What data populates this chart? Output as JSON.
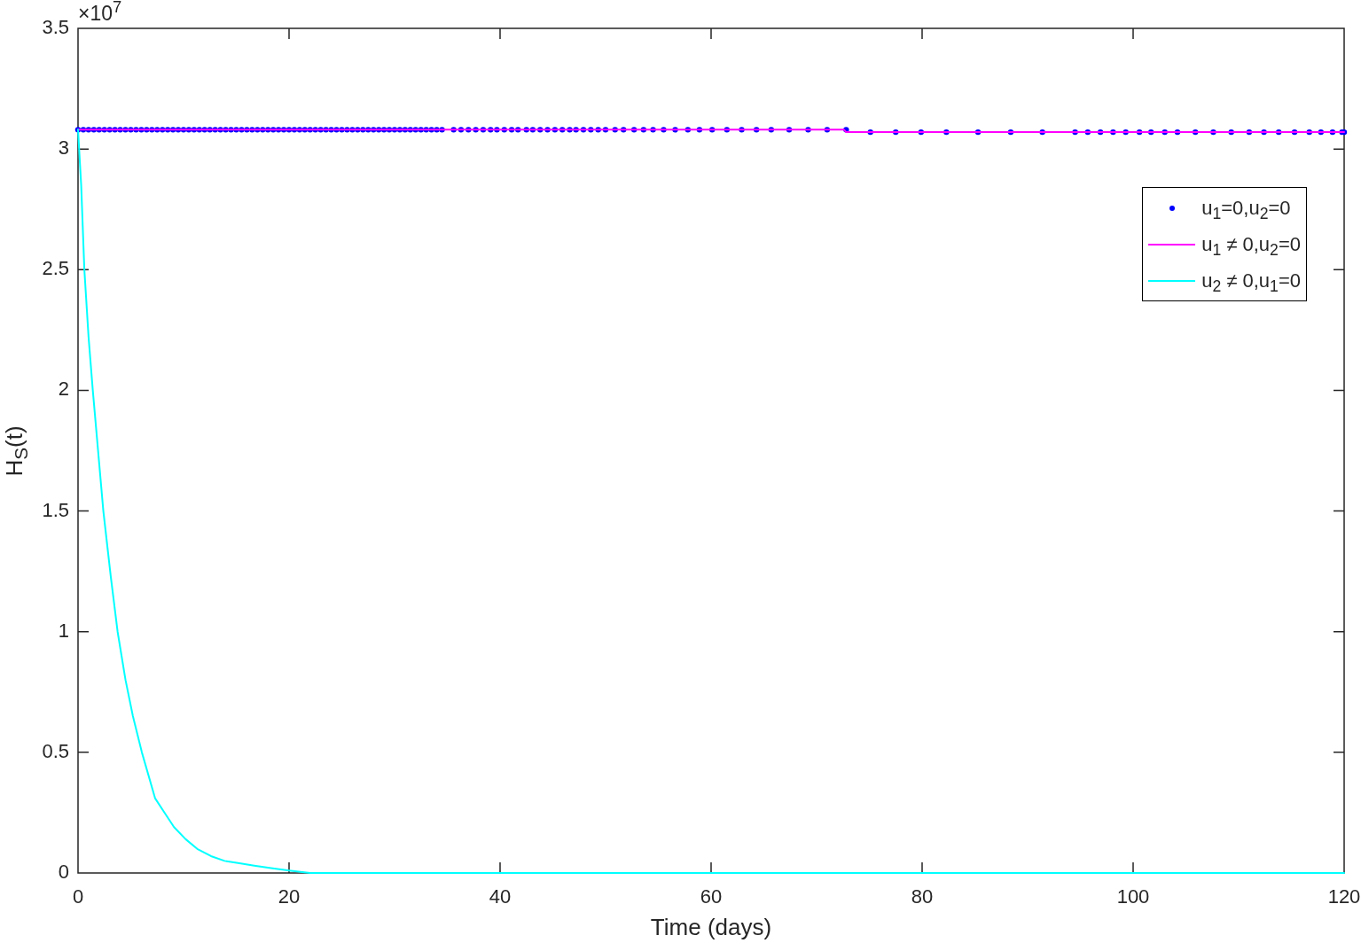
{
  "chart_data": {
    "type": "line",
    "xlabel": "Time (days)",
    "ylabel": "H$_{S}$(t)",
    "annotations": [
      "×10$^{7}$"
    ],
    "xlim": [
      0,
      120
    ],
    "ylim": [
      0,
      3.5
    ],
    "xticks": [
      0,
      20,
      40,
      60,
      80,
      100,
      120
    ],
    "yticks": [
      0,
      0.5,
      1,
      1.5,
      2,
      2.5,
      3,
      3.5
    ],
    "legend": "top right",
    "series": [
      {
        "name": "u$_{1}$=0,u$_{2}$=0",
        "color": "#0000ff",
        "type": "scatter",
        "marker": "circle",
        "x": [
          0,
          0.5,
          1,
          1.5,
          2,
          2.5,
          3,
          3.5,
          4,
          4.5,
          5,
          5.5,
          6,
          6.5,
          7,
          7.5,
          8,
          8.5,
          9,
          9.5,
          10,
          10.5,
          11,
          11.5,
          12,
          12.5,
          13,
          13.5,
          14,
          14.5,
          15,
          15.5,
          16,
          16.5,
          17,
          17.5,
          18,
          18.5,
          19,
          19.5,
          20,
          20.5,
          21,
          21.5,
          22,
          22.5,
          23,
          23.5,
          24,
          24.5,
          25,
          25.5,
          26,
          26.5,
          27,
          27.5,
          28,
          28.5,
          29,
          29.5,
          30,
          30.5,
          31,
          31.5,
          32,
          32.5,
          33,
          33.5,
          34,
          34.5,
          35.6,
          36.3,
          37,
          37.7,
          38.4,
          39.1,
          39.7,
          40.4,
          41.1,
          41.7,
          42.5,
          43.1,
          43.8,
          44.5,
          45.2,
          45.9,
          46.6,
          47.2,
          47.9,
          48.6,
          49.3,
          50,
          50.9,
          51.7,
          52.7,
          53.6,
          54.5,
          55.5,
          56.6,
          57.8,
          58.9,
          60.1,
          61.5,
          62.9,
          64.3,
          65.7,
          67.4,
          69.2,
          71,
          72.8,
          75.1,
          77.5,
          79.9,
          82.3,
          85.3,
          88.4,
          91.4,
          94.5,
          95.7,
          96.9,
          98.1,
          99.3,
          100.6,
          101.7,
          103,
          104.2,
          105.9,
          107.6,
          109.3,
          111,
          112.4,
          113.8,
          115.3,
          116.7,
          117.8,
          118.9,
          119.8,
          120
        ],
        "values": [
          3.08,
          3.08,
          3.08,
          3.08,
          3.08,
          3.08,
          3.08,
          3.08,
          3.08,
          3.08,
          3.08,
          3.08,
          3.08,
          3.08,
          3.08,
          3.08,
          3.08,
          3.08,
          3.08,
          3.08,
          3.08,
          3.08,
          3.08,
          3.08,
          3.08,
          3.08,
          3.08,
          3.08,
          3.08,
          3.08,
          3.08,
          3.08,
          3.08,
          3.08,
          3.08,
          3.08,
          3.08,
          3.08,
          3.08,
          3.08,
          3.08,
          3.08,
          3.08,
          3.08,
          3.08,
          3.08,
          3.08,
          3.08,
          3.08,
          3.08,
          3.08,
          3.08,
          3.08,
          3.08,
          3.08,
          3.08,
          3.08,
          3.08,
          3.08,
          3.08,
          3.08,
          3.08,
          3.08,
          3.08,
          3.08,
          3.08,
          3.08,
          3.08,
          3.08,
          3.08,
          3.08,
          3.08,
          3.08,
          3.08,
          3.08,
          3.08,
          3.08,
          3.08,
          3.08,
          3.08,
          3.08,
          3.08,
          3.08,
          3.08,
          3.08,
          3.08,
          3.08,
          3.08,
          3.08,
          3.08,
          3.08,
          3.08,
          3.08,
          3.08,
          3.08,
          3.08,
          3.08,
          3.08,
          3.08,
          3.08,
          3.08,
          3.08,
          3.08,
          3.08,
          3.08,
          3.08,
          3.08,
          3.08,
          3.08,
          3.08,
          3.07,
          3.07,
          3.07,
          3.07,
          3.07,
          3.07,
          3.07,
          3.07,
          3.07,
          3.07,
          3.07,
          3.07,
          3.07,
          3.07,
          3.07,
          3.07,
          3.07,
          3.07,
          3.07,
          3.07,
          3.07,
          3.07,
          3.07,
          3.07,
          3.07,
          3.07,
          3.07,
          3.07
        ]
      },
      {
        "name": "u$_{1}$ ≠ 0,u$_{2}$=0",
        "color": "#ff00ff",
        "type": "line",
        "x": [
          0,
          72.6,
          72.8,
          120
        ],
        "values": [
          3.08,
          3.08,
          3.07,
          3.07
        ]
      },
      {
        "name": "u$_{2}$ ≠ 0,u$_{1}$=0",
        "color": "#00ffff",
        "type": "line",
        "x": [
          0,
          0.3,
          0.6,
          1,
          1.4,
          1.9,
          2.4,
          3.1,
          3.75,
          4.5,
          5.2,
          6.05,
          7.3,
          8.2,
          9.1,
          10.2,
          11.3,
          12.6,
          13.9,
          15.3,
          16.7,
          18.3,
          20,
          22,
          25,
          120
        ],
        "values": [
          3.08,
          2.85,
          2.5,
          2.22,
          2,
          1.75,
          1.5,
          1.23,
          1,
          0.8,
          0.65,
          0.5,
          0.31,
          0.25,
          0.19,
          0.14,
          0.1,
          0.07,
          0.05,
          0.04,
          0.03,
          0.02,
          0.01,
          0,
          0,
          0
        ]
      }
    ]
  }
}
